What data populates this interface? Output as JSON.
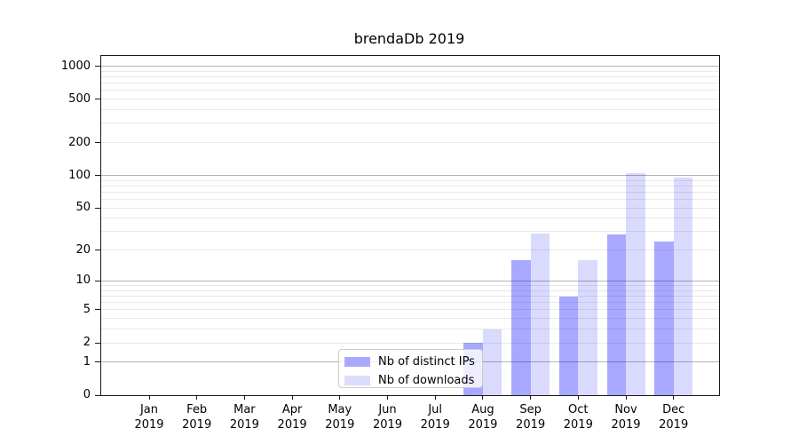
{
  "title": "brendaDb 2019",
  "colors": {
    "bar_ips_fill": "rgba(0,0,255,0.34)",
    "bar_downloads_fill": "rgba(0,0,255,0.145)",
    "legend_swatch_ips": "#a9a9fc",
    "legend_swatch_downloads": "#dcdcfc",
    "grid_major": "#b3b3b3",
    "grid_minor": "#e9e9e9",
    "spine": "#1a1a1a",
    "text": "#000000"
  },
  "legend": {
    "items": [
      {
        "label": "Nb of distinct IPs",
        "swatch": "legend_swatch_ips"
      },
      {
        "label": "Nb of downloads",
        "swatch": "legend_swatch_downloads"
      }
    ]
  },
  "chart_data": {
    "type": "bar",
    "title": "brendaDb 2019",
    "categories": [
      "Jan",
      "Feb",
      "Mar",
      "Apr",
      "May",
      "Jun",
      "Jul",
      "Aug",
      "Sep",
      "Oct",
      "Nov",
      "Dec"
    ],
    "x_second_line": "2019",
    "series": [
      {
        "name": "Nb of distinct IPs",
        "values": [
          0,
          0,
          0,
          0,
          0,
          0,
          0,
          2,
          16,
          7,
          28,
          24
        ]
      },
      {
        "name": "Nb of downloads",
        "values": [
          0,
          0,
          0,
          0,
          0,
          0,
          0,
          3,
          29,
          16,
          105,
          95
        ]
      }
    ],
    "yscale": "log1p",
    "ylim": [
      0,
      1240
    ],
    "ytick_values": [
      0,
      1,
      2,
      5,
      10,
      20,
      50,
      100,
      200,
      500,
      1000
    ],
    "grid": true,
    "legend_position": "lower-center-left"
  }
}
